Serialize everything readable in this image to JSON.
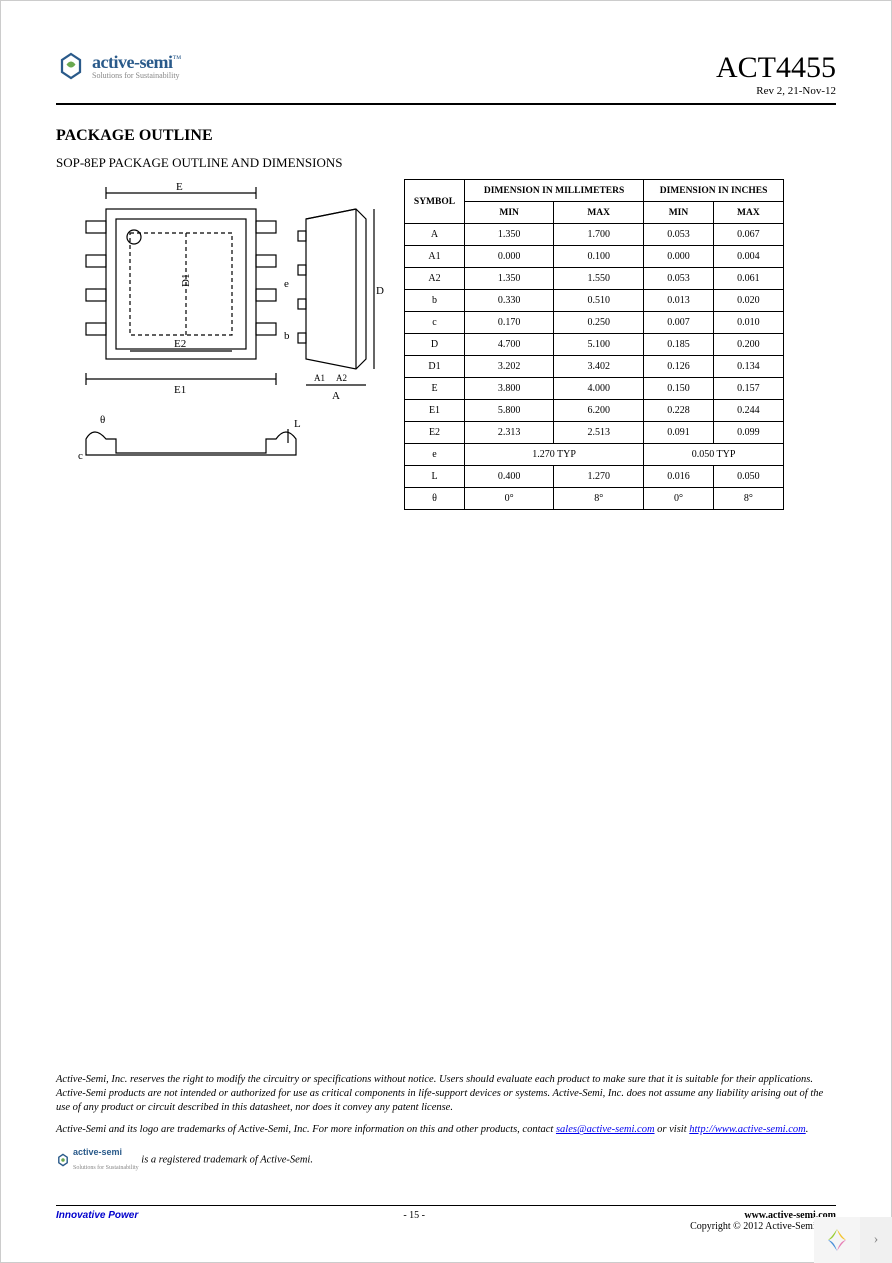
{
  "header": {
    "company_name": "active-semi",
    "company_tagline": "Solutions for Sustainability",
    "part_number": "ACT4455",
    "revision": "Rev 2, 21-Nov-12",
    "logo_colors": {
      "blue": "#2a5a8a",
      "green": "#6aa84f"
    }
  },
  "section": {
    "title": "PACKAGE OUTLINE",
    "subtitle": "SOP-8EP PACKAGE OUTLINE AND DIMENSIONS"
  },
  "drawing": {
    "labels": [
      "E",
      "E1",
      "E2",
      "D",
      "D1",
      "A",
      "A1",
      "A2",
      "b",
      "c",
      "e",
      "L",
      "θ"
    ],
    "stroke": "#000000",
    "stroke_width": 1.2
  },
  "table": {
    "headers": {
      "symbol": "SYMBOL",
      "mm": "DIMENSION IN MILLIMETERS",
      "in": "DIMENSION IN INCHES",
      "min": "MIN",
      "max": "MAX"
    },
    "rows": [
      {
        "sym": "A",
        "mm_min": "1.350",
        "mm_max": "1.700",
        "in_min": "0.053",
        "in_max": "0.067"
      },
      {
        "sym": "A1",
        "mm_min": "0.000",
        "mm_max": "0.100",
        "in_min": "0.000",
        "in_max": "0.004"
      },
      {
        "sym": "A2",
        "mm_min": "1.350",
        "mm_max": "1.550",
        "in_min": "0.053",
        "in_max": "0.061"
      },
      {
        "sym": "b",
        "mm_min": "0.330",
        "mm_max": "0.510",
        "in_min": "0.013",
        "in_max": "0.020"
      },
      {
        "sym": "c",
        "mm_min": "0.170",
        "mm_max": "0.250",
        "in_min": "0.007",
        "in_max": "0.010"
      },
      {
        "sym": "D",
        "mm_min": "4.700",
        "mm_max": "5.100",
        "in_min": "0.185",
        "in_max": "0.200"
      },
      {
        "sym": "D1",
        "mm_min": "3.202",
        "mm_max": "3.402",
        "in_min": "0.126",
        "in_max": "0.134"
      },
      {
        "sym": "E",
        "mm_min": "3.800",
        "mm_max": "4.000",
        "in_min": "0.150",
        "in_max": "0.157"
      },
      {
        "sym": "E1",
        "mm_min": "5.800",
        "mm_max": "6.200",
        "in_min": "0.228",
        "in_max": "0.244"
      },
      {
        "sym": "E2",
        "mm_min": "2.313",
        "mm_max": "2.513",
        "in_min": "0.091",
        "in_max": "0.099"
      },
      {
        "sym": "e",
        "mm_typ": "1.270 TYP",
        "in_typ": "0.050 TYP"
      },
      {
        "sym": "L",
        "mm_min": "0.400",
        "mm_max": "1.270",
        "in_min": "0.016",
        "in_max": "0.050"
      },
      {
        "sym": "θ",
        "mm_min": "0°",
        "mm_max": "8°",
        "in_min": "0°",
        "in_max": "8°"
      }
    ],
    "border_color": "#000000",
    "font_size": 10
  },
  "footnotes": {
    "p1": "Active-Semi, Inc. reserves the right to modify the circuitry or specifications without notice. Users should evaluate each product to make sure that it is suitable for their applications. Active-Semi products are not intended or authorized for use as critical components in life-support devices or systems. Active-Semi, Inc. does not assume any liability arising out of the use of any product or circuit described in this datasheet, nor does it convey any patent license.",
    "p2_pre": "Active-Semi and its logo are trademarks of Active-Semi, Inc. For more information on this and other products, contact ",
    "email": "sales@active-semi.com",
    "p2_mid": " or visit ",
    "url": "http://www.active-semi.com",
    "p2_post": ".",
    "p3": " is a registered trademark of Active-Semi."
  },
  "footer": {
    "left": "Innovative Power",
    "center": "- 15 -",
    "right_url": "www.active-semi.com",
    "copyright": "Copyright © 2012 Active-Semi, Inc."
  }
}
